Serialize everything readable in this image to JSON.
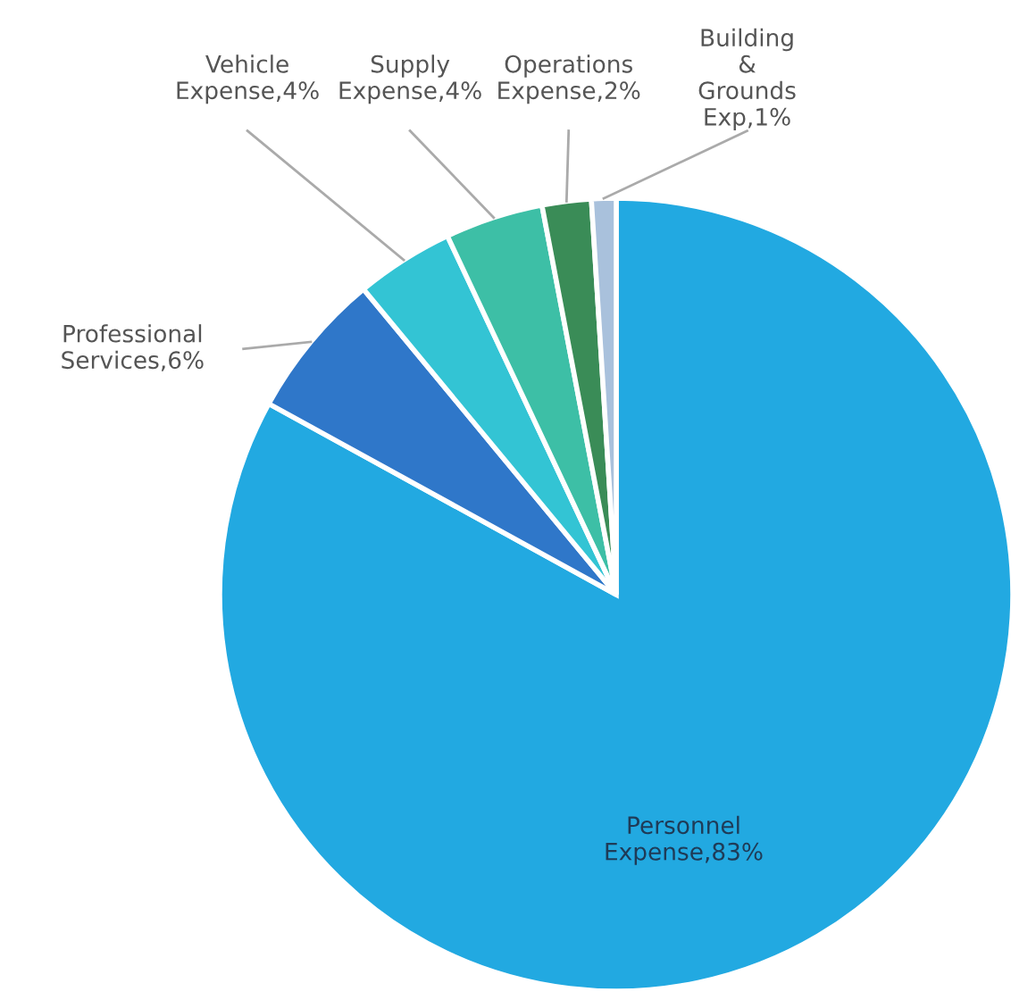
{
  "chart_data": {
    "type": "pie",
    "categories": [
      "Personnel Expense",
      "Professional Services",
      "Vehicle Expense",
      "Supply Expense",
      "Operations Expense",
      "Building & Grounds Exp"
    ],
    "values": [
      83,
      6,
      4,
      4,
      2,
      1
    ],
    "value_labels": [
      "83%",
      "6%",
      "4%",
      "4%",
      "2%",
      "1%"
    ],
    "colors": [
      "#22a9e1",
      "#2f77c9",
      "#33c4d4",
      "#3dbfa6",
      "#3a8c57",
      "#a9c1dc"
    ]
  }
}
